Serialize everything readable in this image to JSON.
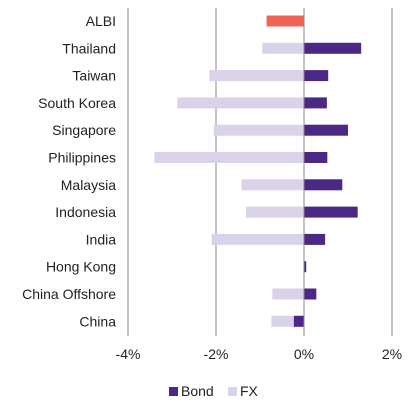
{
  "chart_data": {
    "type": "bar",
    "orientation": "horizontal",
    "categories": [
      "ALBI",
      "Thailand",
      "Taiwan",
      "South Korea",
      "Singapore",
      "Philippines",
      "Malaysia",
      "Indonesia",
      "India",
      "Hong Kong",
      "China Offshore",
      "China"
    ],
    "series": [
      {
        "name": "Bond",
        "values": [
          -0.85,
          1.3,
          0.55,
          0.52,
          1.0,
          0.53,
          0.87,
          1.22,
          0.48,
          0.05,
          0.28,
          -0.23
        ]
      },
      {
        "name": "FX",
        "values": [
          null,
          -0.95,
          -2.15,
          -2.88,
          -2.05,
          -3.4,
          -1.42,
          -1.32,
          -2.1,
          0.0,
          -0.72,
          -0.74
        ]
      }
    ],
    "highlight": {
      "category": "ALBI",
      "color": "#ef6355"
    },
    "colors": {
      "Bond": "#4b2885",
      "FX": "#d9d2e9",
      "ALBI": "#ef6355"
    },
    "xlim": [
      -4,
      2
    ],
    "xticks": [
      -4,
      -2,
      0,
      2
    ],
    "xtick_labels": [
      "-4%",
      "-2%",
      "0%",
      "2%"
    ],
    "grid": "vertical",
    "legend": {
      "position": "bottom",
      "entries": [
        "Bond",
        "FX"
      ]
    }
  }
}
